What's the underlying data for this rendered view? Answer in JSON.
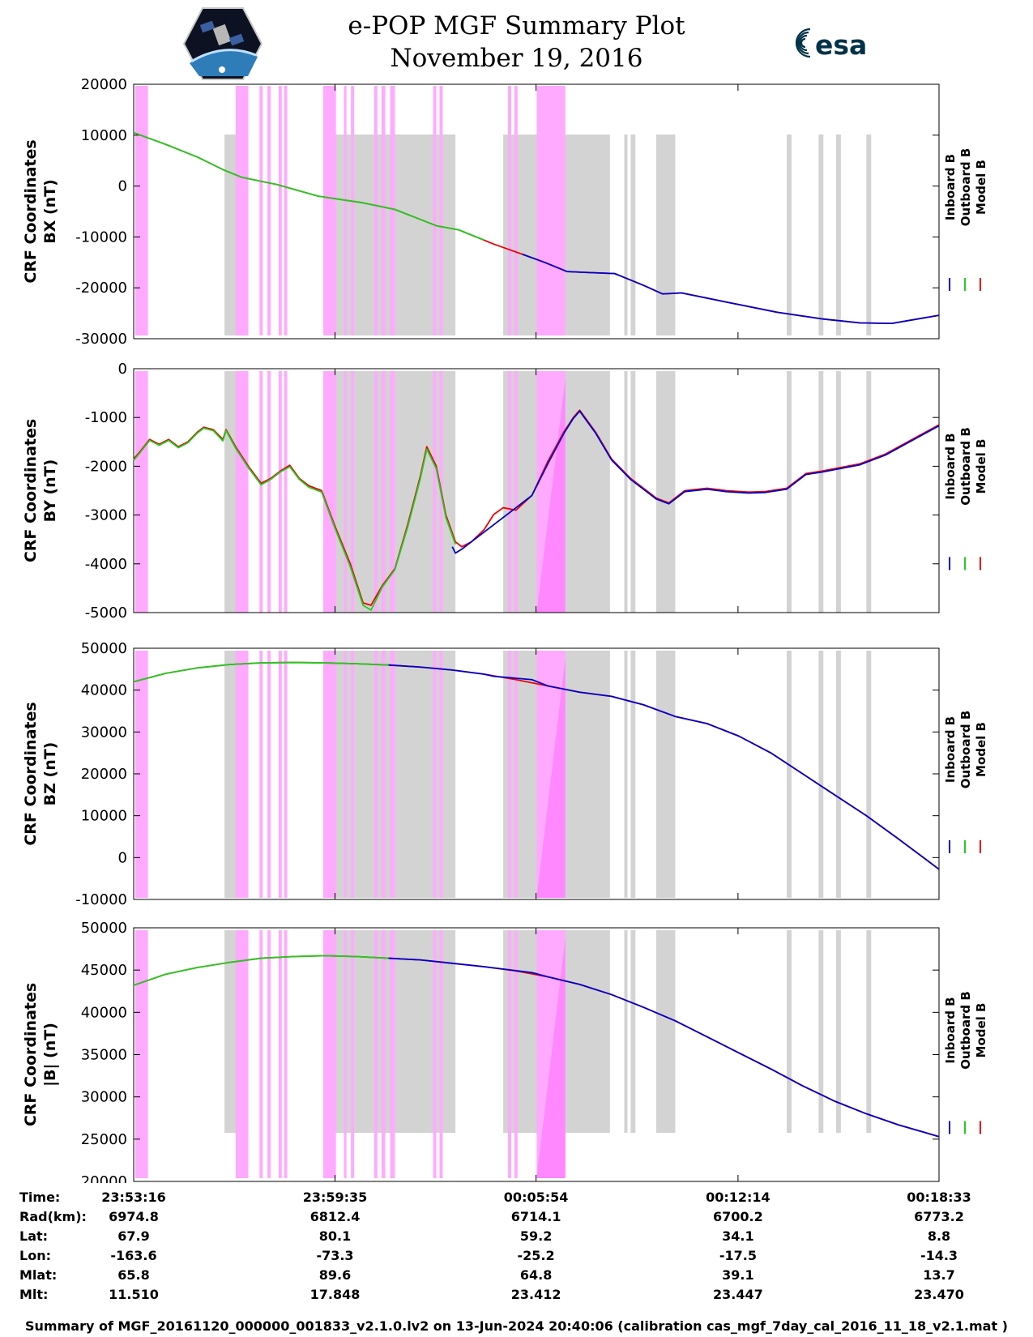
{
  "header": {
    "title": "e-POP MGF Summary Plot",
    "date": "November 19, 2016",
    "logo_left": "cassiope-mission-patch",
    "logo_right_text": "esa"
  },
  "colors": {
    "inboard": "#0000cc",
    "outboard": "#22cc22",
    "model": "#ee0000",
    "gray_shade": "#d3d3d3",
    "pink_shade": "#ffaaff"
  },
  "chart_data": {
    "type": "line",
    "x_unit": "minutes from 23:53:16",
    "xlim": [
      0,
      25.28
    ],
    "x_ticks": [
      0,
      6.32,
      12.63,
      18.97,
      25.28
    ],
    "x_tick_labels": [
      "23:53:16",
      "23:59:35",
      "00:05:54",
      "00:12:14",
      "00:18:33"
    ],
    "legend": [
      "Inboard B",
      "Outboard B",
      "Model B"
    ],
    "gray_bands": [
      [
        2.85,
        3.1
      ],
      [
        3.1,
        3.6
      ],
      [
        6.3,
        10.1
      ],
      [
        11.6,
        14.95
      ],
      [
        15.4,
        15.5
      ],
      [
        15.6,
        15.75
      ],
      [
        16.4,
        17.0
      ],
      [
        20.5,
        20.65
      ],
      [
        21.5,
        21.65
      ],
      [
        22.05,
        22.2
      ],
      [
        23.0,
        23.15
      ]
    ],
    "pink_bands": [
      [
        0.05,
        0.45
      ],
      [
        3.2,
        3.6
      ],
      [
        3.95,
        4.05
      ],
      [
        4.2,
        4.3
      ],
      [
        4.55,
        4.65
      ],
      [
        4.72,
        4.82
      ],
      [
        5.95,
        6.35
      ],
      [
        6.6,
        6.68
      ],
      [
        6.82,
        6.92
      ],
      [
        7.55,
        7.65
      ],
      [
        7.78,
        7.9
      ],
      [
        8.05,
        8.15
      ],
      [
        8.15,
        8.2
      ],
      [
        9.4,
        9.5
      ],
      [
        9.6,
        9.7
      ],
      [
        11.75,
        11.85
      ],
      [
        11.95,
        12.05
      ],
      [
        12.65,
        13.55
      ]
    ],
    "panels": [
      {
        "name": "BX",
        "ylabel_line1": "CRF Coordinates",
        "ylabel_line2": "BX (nT)",
        "ylim": [
          -30000,
          20000
        ],
        "y_ticks": [
          -30000,
          -20000,
          -10000,
          0,
          10000,
          20000
        ],
        "y_tick_labels": [
          "-30000",
          "-20000",
          "-10000",
          "0",
          "10000",
          "20000"
        ],
        "ramp": false,
        "model": {
          "x": [
            0,
            1,
            2,
            2.85,
            3.4,
            4.5,
            5.8,
            7.2,
            8.2,
            9.5,
            10.2,
            11.3,
            12.2,
            12.9,
            13.6,
            14.3,
            15.1,
            16.0,
            16.6,
            17.2,
            18.6,
            20.2,
            21.6,
            22.8,
            23.8,
            25.28
          ],
          "y": [
            10500,
            8200,
            5700,
            3100,
            1700,
            300,
            -2000,
            -3300,
            -4600,
            -7800,
            -8600,
            -11400,
            -13400,
            -15000,
            -16800,
            -17000,
            -17200,
            -19500,
            -21200,
            -21000,
            -22800,
            -24800,
            -26100,
            -26900,
            -27000,
            -25400
          ]
        },
        "outboard": {
          "x": [
            0,
            1,
            2,
            2.85,
            3.4,
            4.5,
            5.8,
            7.2,
            8.2,
            9.5,
            10.2,
            11.0
          ],
          "y": [
            10500,
            8200,
            5700,
            3100,
            1700,
            300,
            -2000,
            -3300,
            -4600,
            -7800,
            -8600,
            -10600
          ]
        },
        "inboard": {
          "x": [
            12.2,
            12.9,
            13.6,
            14.3,
            15.1,
            16.0,
            16.6,
            17.2,
            18.6,
            20.2,
            21.6,
            22.8,
            23.8,
            25.28
          ],
          "y": [
            -13400,
            -15000,
            -16800,
            -17000,
            -17200,
            -19500,
            -21200,
            -21000,
            -22800,
            -24800,
            -26100,
            -26900,
            -27000,
            -25400
          ]
        }
      },
      {
        "name": "BY",
        "ylabel_line1": "CRF Coordinates",
        "ylabel_line2": "BY (nT)",
        "ylim": [
          -5000,
          0
        ],
        "y_ticks": [
          -5000,
          -4000,
          -3000,
          -2000,
          -1000,
          0
        ],
        "y_tick_labels": [
          "-5000",
          "-4000",
          "-3000",
          "-2000",
          "-1000",
          "0"
        ],
        "ramp": true,
        "model": {
          "x": [
            0,
            0.2,
            0.5,
            0.8,
            1.1,
            1.4,
            1.7,
            2.0,
            2.2,
            2.5,
            2.8,
            2.9,
            3.2,
            3.6,
            4.0,
            4.3,
            4.6,
            4.9,
            5.2,
            5.5,
            5.9,
            6.3,
            6.8,
            7.2,
            7.45,
            7.8,
            8.2,
            8.6,
            9.0,
            9.2,
            9.5,
            9.8,
            10.1,
            10.3,
            10.6,
            11.0,
            11.3,
            11.6,
            12.0,
            12.5,
            13.0,
            13.5,
            13.8,
            14.0,
            14.5,
            15.0,
            15.6,
            16.2,
            16.4,
            16.8,
            17.3,
            18.0,
            18.6,
            19.3,
            19.8,
            20.5,
            21.1,
            21.6,
            22.0,
            22.8,
            23.6,
            25.28
          ],
          "y": [
            -1850,
            -1700,
            -1450,
            -1550,
            -1450,
            -1600,
            -1500,
            -1300,
            -1200,
            -1250,
            -1450,
            -1250,
            -1600,
            -2000,
            -2350,
            -2250,
            -2100,
            -1980,
            -2250,
            -2400,
            -2500,
            -3200,
            -4000,
            -4800,
            -4850,
            -4450,
            -4100,
            -3200,
            -2200,
            -1600,
            -2000,
            -3000,
            -3550,
            -3650,
            -3550,
            -3300,
            -2990,
            -2850,
            -2900,
            -2600,
            -1900,
            -1300,
            -1000,
            -850,
            -1300,
            -1850,
            -2250,
            -2550,
            -2650,
            -2750,
            -2500,
            -2450,
            -2500,
            -2530,
            -2520,
            -2450,
            -2150,
            -2100,
            -2050,
            -1950,
            -1750,
            -1150
          ]
        },
        "outboard": {
          "x": [
            0,
            0.2,
            0.5,
            0.8,
            1.1,
            1.4,
            1.7,
            2.0,
            2.2,
            2.5,
            2.8,
            2.9,
            3.2,
            3.6,
            4.0,
            4.3,
            4.6,
            4.9,
            5.2,
            5.5,
            5.9,
            6.3,
            6.8,
            7.2,
            7.45,
            7.8,
            8.2,
            8.6,
            9.0,
            9.2,
            9.5,
            9.8,
            10.1
          ],
          "y": [
            -1880,
            -1720,
            -1470,
            -1570,
            -1470,
            -1620,
            -1520,
            -1320,
            -1220,
            -1270,
            -1480,
            -1270,
            -1630,
            -2030,
            -2380,
            -2270,
            -2120,
            -2010,
            -2270,
            -2430,
            -2530,
            -3240,
            -4060,
            -4850,
            -4950,
            -4480,
            -4120,
            -3250,
            -2250,
            -1650,
            -2050,
            -3050,
            -3600
          ]
        },
        "inboard": {
          "x": [
            10.0,
            10.1,
            10.3,
            10.5,
            10.8,
            12.0,
            12.5,
            13.0,
            13.5,
            13.8,
            14.0,
            14.5,
            15.0,
            15.6,
            16.2,
            16.4,
            16.8,
            17.3,
            18.0,
            18.6,
            19.3,
            19.8,
            20.5,
            21.1,
            21.6,
            22.0,
            22.8,
            23.6,
            25.28
          ],
          "y": [
            -3650,
            -3780,
            -3700,
            -3600,
            -3450,
            -2850,
            -2600,
            -1950,
            -1330,
            -1020,
            -870,
            -1320,
            -1870,
            -2270,
            -2570,
            -2670,
            -2770,
            -2520,
            -2470,
            -2520,
            -2550,
            -2540,
            -2470,
            -2170,
            -2120,
            -2070,
            -1970,
            -1770,
            -1170
          ]
        }
      },
      {
        "name": "BZ",
        "ylabel_line1": "CRF Coordinates",
        "ylabel_line2": "BZ (nT)",
        "ylim": [
          -10000,
          50000
        ],
        "y_ticks": [
          -10000,
          0,
          10000,
          20000,
          30000,
          40000,
          50000
        ],
        "y_tick_labels": [
          "-10000",
          "0",
          "10000",
          "20000",
          "30000",
          "40000",
          "50000"
        ],
        "ramp": true,
        "model": {
          "x": [
            0,
            1,
            2,
            3,
            4,
            5,
            6,
            7,
            8,
            9,
            10,
            11,
            12,
            13,
            14,
            15,
            16,
            17,
            18,
            19,
            20,
            21,
            22,
            23,
            24,
            25.28
          ],
          "y": [
            42000,
            44000,
            45300,
            46100,
            46500,
            46600,
            46500,
            46300,
            46000,
            45500,
            44800,
            43800,
            42500,
            41000,
            39500,
            38500,
            36500,
            33700,
            32000,
            29000,
            25000,
            20000,
            15000,
            10000,
            4500,
            -2800
          ]
        },
        "outboard": {
          "x": [
            0,
            1,
            2,
            3,
            4,
            5,
            6,
            7,
            8
          ],
          "y": [
            42000,
            44000,
            45300,
            46100,
            46500,
            46600,
            46500,
            46300,
            46000
          ]
        },
        "inboard": {
          "x": [
            8,
            9,
            10,
            11,
            11.3,
            12.5,
            13,
            14,
            15,
            16,
            17,
            18,
            19,
            20,
            21,
            22,
            23,
            24,
            25.28
          ],
          "y": [
            46000,
            45500,
            44800,
            43800,
            43300,
            42500,
            41000,
            39500,
            38500,
            36500,
            33700,
            32000,
            29000,
            25000,
            20000,
            15000,
            10000,
            4500,
            -2800
          ]
        }
      },
      {
        "name": "B",
        "ylabel_line1": "CRF Coordinates",
        "ylabel_line2": "|B| (nT)",
        "ylim": [
          20000,
          50000
        ],
        "y_ticks": [
          20000,
          25000,
          30000,
          35000,
          40000,
          45000,
          50000
        ],
        "y_tick_labels": [
          "20000",
          "25000",
          "30000",
          "35000",
          "40000",
          "45000",
          "50000"
        ],
        "ramp": true,
        "model": {
          "x": [
            0,
            1,
            2,
            3,
            4,
            5,
            6,
            7,
            8,
            9,
            10,
            11,
            12,
            13,
            14,
            15,
            16,
            17,
            18,
            19,
            20,
            21,
            22,
            23,
            24,
            25.28
          ],
          "y": [
            43200,
            44500,
            45300,
            45900,
            46400,
            46600,
            46700,
            46600,
            46400,
            46200,
            45800,
            45400,
            44900,
            44200,
            43300,
            42100,
            40600,
            39000,
            37100,
            35200,
            33300,
            31300,
            29500,
            28000,
            26700,
            25300
          ]
        },
        "outboard": {
          "x": [
            0,
            1,
            2,
            3,
            4,
            5,
            6,
            7,
            8
          ],
          "y": [
            43200,
            44500,
            45300,
            45900,
            46400,
            46600,
            46700,
            46600,
            46400
          ]
        },
        "inboard": {
          "x": [
            8,
            9,
            10,
            11,
            12.5,
            13,
            14,
            15,
            16,
            17,
            18,
            19,
            20,
            21,
            22,
            23,
            24,
            25.28
          ],
          "y": [
            46400,
            46200,
            45800,
            45400,
            44700,
            44200,
            43300,
            42100,
            40600,
            39000,
            37100,
            35200,
            33300,
            31300,
            29500,
            28000,
            26700,
            25300
          ]
        }
      }
    ]
  },
  "ephemeris": {
    "row_labels": [
      "Time:",
      "Rad(km):",
      "Lat:",
      "Lon:",
      "Mlat:",
      "Mlt:"
    ],
    "columns": [
      [
        "23:53:16",
        "6974.8",
        "67.9",
        "-163.6",
        "65.8",
        "11.510"
      ],
      [
        "23:59:35",
        "6812.4",
        "80.1",
        "-73.3",
        "89.6",
        "17.848"
      ],
      [
        "00:05:54",
        "6714.1",
        "59.2",
        "-25.2",
        "64.8",
        "23.412"
      ],
      [
        "00:12:14",
        "6700.2",
        "34.1",
        "-17.5",
        "39.1",
        "23.447"
      ],
      [
        "00:18:33",
        "6773.2",
        "8.8",
        "-14.3",
        "13.7",
        "23.470"
      ]
    ]
  },
  "footer": "Summary of MGF_20161120_000000_001833_v2.1.0.lv2 on 13-Jun-2024 20:40:06 (calibration cas_mgf_7day_cal_2016_11_18_v2.1.mat )"
}
